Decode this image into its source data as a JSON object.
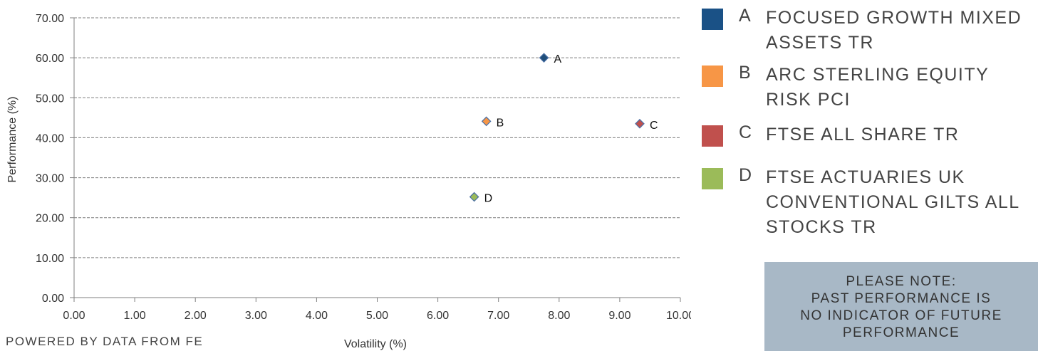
{
  "chart_data": {
    "type": "scatter",
    "title": "",
    "xlabel": "Volatility (%)",
    "ylabel": "Performance (%)",
    "xlim": [
      0,
      10
    ],
    "ylim": [
      0,
      70
    ],
    "x_ticks": [
      "0.00",
      "1.00",
      "2.00",
      "3.00",
      "4.00",
      "5.00",
      "6.00",
      "7.00",
      "8.00",
      "9.00",
      "10.00"
    ],
    "y_ticks": [
      "0.00",
      "10.00",
      "20.00",
      "30.00",
      "40.00",
      "50.00",
      "60.00",
      "70.00"
    ],
    "grid": "horizontal dashed",
    "marker": "diamond",
    "legend_position": "right",
    "points": [
      {
        "label": "A",
        "name": "FOCUSED GROWTH MIXED ASSETS TR",
        "x": 7.75,
        "y": 60.0,
        "color": "#1f4e79"
      },
      {
        "label": "B",
        "name": "ARC STERLING EQUITY RISK PCI",
        "x": 6.8,
        "y": 44.1,
        "color": "#f79646"
      },
      {
        "label": "C",
        "name": "FTSE ALL SHARE TR",
        "x": 9.33,
        "y": 43.5,
        "color": "#c0504d"
      },
      {
        "label": "D",
        "name": "FTSE ACTUARIES UK CONVENTIONAL GILTS ALL STOCKS TR",
        "x": 6.6,
        "y": 25.2,
        "color": "#9bbb59"
      }
    ]
  },
  "legend": [
    {
      "letter": "A",
      "name": "FOCUSED GROWTH MIXED ASSETS TR",
      "color": "#1a5186"
    },
    {
      "letter": "B",
      "name": "ARC STERLING EQUITY RISK PCI",
      "color": "#f79646"
    },
    {
      "letter": "C",
      "name": "FTSE ALL SHARE TR",
      "color": "#c0504d"
    },
    {
      "letter": "D",
      "name": "FTSE ACTUARIES UK CONVENTIONAL GILTS ALL STOCKS TR",
      "color": "#9bbb59"
    }
  ],
  "footer": "POWERED BY DATA FROM FE",
  "note_lines": [
    "PLEASE NOTE:",
    "PAST PERFORMANCE IS",
    "NO INDICATOR OF FUTURE",
    "PERFORMANCE"
  ]
}
